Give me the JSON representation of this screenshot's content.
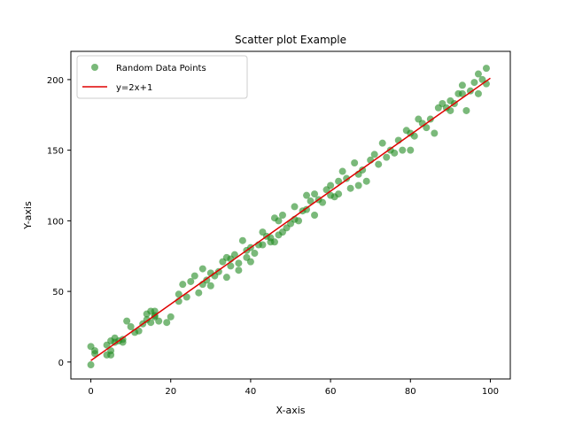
{
  "chart_data": {
    "type": "scatter",
    "title": "Scatter plot Example",
    "xlabel": "X-axis",
    "ylabel": "Y-axis",
    "xlim": [
      -5,
      105
    ],
    "ylim": [
      -12,
      220
    ],
    "xticks": [
      0,
      20,
      40,
      60,
      80,
      100
    ],
    "yticks": [
      0,
      50,
      100,
      150,
      200
    ],
    "grid": false,
    "legend_position": "upper-left",
    "colors": {
      "scatter": "#228b22",
      "line": "#e00000"
    },
    "series": [
      {
        "name": "Random Data Points",
        "kind": "scatter",
        "points": [
          [
            0,
            11
          ],
          [
            0,
            -2
          ],
          [
            1,
            8
          ],
          [
            1,
            6
          ],
          [
            4,
            5
          ],
          [
            4,
            12
          ],
          [
            5,
            15
          ],
          [
            5,
            8
          ],
          [
            5,
            5
          ],
          [
            6,
            17
          ],
          [
            6,
            14
          ],
          [
            7,
            15
          ],
          [
            8,
            14
          ],
          [
            8,
            16
          ],
          [
            9,
            29
          ],
          [
            10,
            25
          ],
          [
            11,
            21
          ],
          [
            12,
            22
          ],
          [
            13,
            27
          ],
          [
            14,
            30
          ],
          [
            14,
            34
          ],
          [
            15,
            28
          ],
          [
            15,
            36
          ],
          [
            16,
            33
          ],
          [
            16,
            32
          ],
          [
            16,
            36
          ],
          [
            17,
            29
          ],
          [
            19,
            28
          ],
          [
            20,
            32
          ],
          [
            22,
            43
          ],
          [
            22,
            48
          ],
          [
            23,
            55
          ],
          [
            24,
            46
          ],
          [
            25,
            57
          ],
          [
            26,
            61
          ],
          [
            27,
            49
          ],
          [
            28,
            66
          ],
          [
            28,
            55
          ],
          [
            29,
            58
          ],
          [
            30,
            54
          ],
          [
            30,
            63
          ],
          [
            31,
            61
          ],
          [
            32,
            64
          ],
          [
            33,
            71
          ],
          [
            34,
            60
          ],
          [
            34,
            74
          ],
          [
            35,
            68
          ],
          [
            35,
            73
          ],
          [
            36,
            76
          ],
          [
            37,
            65
          ],
          [
            37,
            70
          ],
          [
            38,
            86
          ],
          [
            39,
            79
          ],
          [
            39,
            74
          ],
          [
            40,
            71
          ],
          [
            40,
            81
          ],
          [
            41,
            77
          ],
          [
            42,
            83
          ],
          [
            43,
            92
          ],
          [
            43,
            83
          ],
          [
            44,
            89
          ],
          [
            45,
            85
          ],
          [
            45,
            88
          ],
          [
            46,
            102
          ],
          [
            46,
            85
          ],
          [
            47,
            100
          ],
          [
            47,
            90
          ],
          [
            48,
            104
          ],
          [
            48,
            92
          ],
          [
            49,
            95
          ],
          [
            50,
            98
          ],
          [
            51,
            101
          ],
          [
            51,
            110
          ],
          [
            52,
            100
          ],
          [
            53,
            107
          ],
          [
            54,
            108
          ],
          [
            54,
            118
          ],
          [
            55,
            114
          ],
          [
            56,
            104
          ],
          [
            56,
            119
          ],
          [
            57,
            115
          ],
          [
            58,
            113
          ],
          [
            59,
            122
          ],
          [
            60,
            118
          ],
          [
            60,
            125
          ],
          [
            61,
            117
          ],
          [
            62,
            119
          ],
          [
            62,
            128
          ],
          [
            63,
            135
          ],
          [
            64,
            130
          ],
          [
            65,
            123
          ],
          [
            66,
            141
          ],
          [
            67,
            133
          ],
          [
            67,
            125
          ],
          [
            68,
            136
          ],
          [
            69,
            128
          ],
          [
            70,
            143
          ],
          [
            71,
            147
          ],
          [
            72,
            140
          ],
          [
            73,
            155
          ],
          [
            74,
            145
          ],
          [
            75,
            150
          ],
          [
            76,
            148
          ],
          [
            77,
            157
          ],
          [
            78,
            150
          ],
          [
            79,
            164
          ],
          [
            80,
            162
          ],
          [
            80,
            150
          ],
          [
            81,
            160
          ],
          [
            82,
            172
          ],
          [
            83,
            169
          ],
          [
            84,
            166
          ],
          [
            85,
            172
          ],
          [
            86,
            162
          ],
          [
            87,
            180
          ],
          [
            88,
            183
          ],
          [
            89,
            180
          ],
          [
            90,
            178
          ],
          [
            90,
            185
          ],
          [
            91,
            183
          ],
          [
            92,
            190
          ],
          [
            93,
            190
          ],
          [
            93,
            196
          ],
          [
            94,
            178
          ],
          [
            95,
            192
          ],
          [
            96,
            198
          ],
          [
            97,
            204
          ],
          [
            97,
            190
          ],
          [
            98,
            200
          ],
          [
            99,
            208
          ],
          [
            99,
            197
          ]
        ]
      },
      {
        "name": "y=2x+1",
        "kind": "line",
        "points": [
          [
            0,
            1
          ],
          [
            100,
            201
          ]
        ]
      }
    ]
  }
}
